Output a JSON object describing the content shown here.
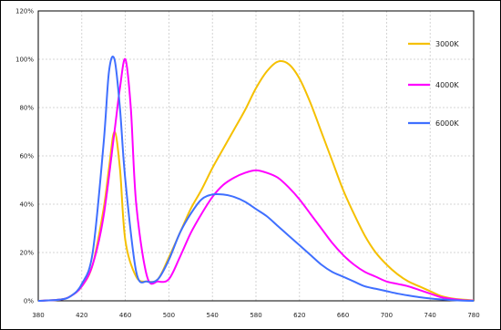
{
  "chart_data": {
    "type": "line",
    "title": "",
    "xlabel": "",
    "ylabel": "",
    "xlim": [
      380,
      780
    ],
    "ylim": [
      0,
      120
    ],
    "grid": true,
    "legend_position": "top-right",
    "x_tick_labels": [
      "380",
      "420",
      "460",
      "500",
      "540",
      "580",
      "620",
      "660",
      "700",
      "740",
      "780"
    ],
    "x_ticks": [
      380,
      420,
      460,
      500,
      540,
      580,
      620,
      660,
      700,
      740,
      780
    ],
    "y_tick_labels": [
      "0%",
      "20%",
      "40%",
      "60%",
      "80%",
      "100%",
      "120%"
    ],
    "y_ticks": [
      0,
      20,
      40,
      60,
      80,
      100,
      120
    ],
    "series": [
      {
        "name": "3000K",
        "color": "#f5c000",
        "x": [
          380,
          400,
          410,
          420,
          430,
          440,
          445,
          450,
          455,
          460,
          470,
          480,
          490,
          500,
          510,
          520,
          530,
          540,
          550,
          560,
          570,
          580,
          590,
          600,
          610,
          620,
          630,
          640,
          650,
          660,
          670,
          680,
          690,
          700,
          710,
          720,
          730,
          740,
          750,
          760,
          770,
          780
        ],
        "y": [
          0,
          0.5,
          2,
          6,
          15,
          38,
          55,
          70,
          55,
          25,
          10,
          8,
          9,
          18,
          28,
          38,
          46,
          55,
          63,
          71,
          79,
          88,
          95,
          99,
          98,
          92,
          82,
          70,
          58,
          46,
          36,
          27,
          20,
          15,
          11,
          8,
          6,
          4,
          2,
          1,
          0.5,
          0.2
        ]
      },
      {
        "name": "4000K",
        "color": "#ff00ff",
        "x": [
          380,
          400,
          410,
          420,
          430,
          440,
          450,
          455,
          460,
          465,
          470,
          480,
          490,
          500,
          510,
          520,
          530,
          540,
          550,
          560,
          570,
          580,
          590,
          600,
          610,
          620,
          630,
          640,
          650,
          660,
          670,
          680,
          690,
          700,
          710,
          720,
          730,
          740,
          750,
          760,
          770,
          780
        ],
        "y": [
          0,
          0.5,
          2,
          6,
          15,
          35,
          70,
          88,
          100,
          80,
          40,
          10,
          8,
          9,
          18,
          28,
          36,
          43,
          48,
          51,
          53,
          54,
          53,
          51,
          47,
          42,
          36,
          30,
          24,
          19,
          15,
          12,
          10,
          8,
          7,
          6,
          4.5,
          3,
          1.5,
          0.8,
          0.3,
          0.1
        ]
      },
      {
        "name": "6000K",
        "color": "#3f6fff",
        "x": [
          380,
          400,
          410,
          420,
          430,
          440,
          445,
          450,
          455,
          460,
          470,
          480,
          490,
          500,
          510,
          520,
          530,
          540,
          550,
          560,
          570,
          580,
          590,
          600,
          610,
          620,
          630,
          640,
          650,
          660,
          670,
          680,
          690,
          700,
          710,
          720,
          730,
          740,
          750,
          760,
          770,
          780
        ],
        "y": [
          0,
          0.5,
          2,
          7,
          20,
          65,
          95,
          100,
          80,
          50,
          12,
          8,
          9,
          17,
          28,
          36,
          42,
          44,
          44,
          43,
          41,
          38,
          35,
          31,
          27,
          23,
          19,
          15,
          12,
          10,
          8,
          6,
          5,
          4,
          3,
          2.2,
          1.5,
          1,
          0.6,
          0.3,
          0.1,
          0
        ]
      }
    ]
  }
}
